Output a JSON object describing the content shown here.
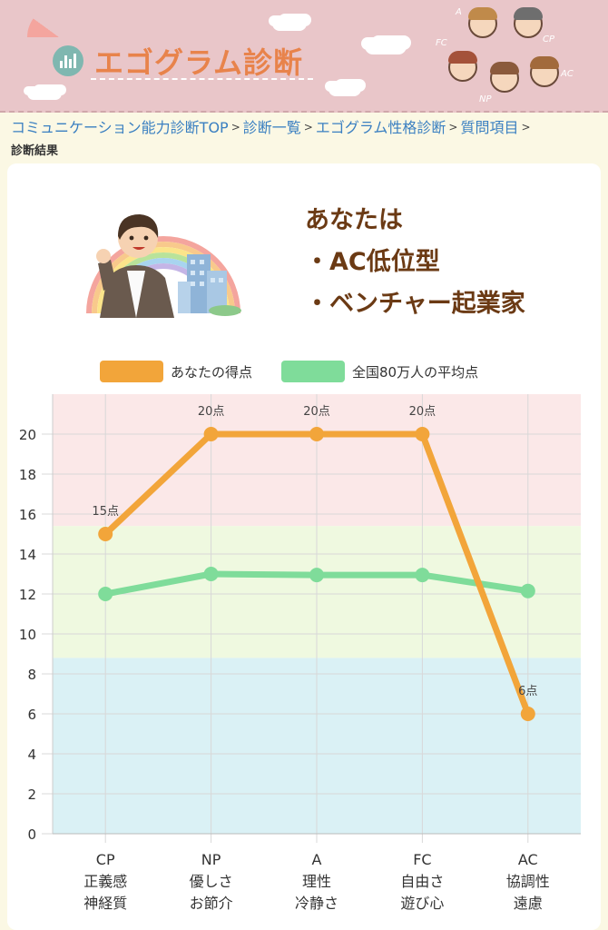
{
  "header": {
    "site_title": "エゴグラム診断",
    "character_labels": [
      "A",
      "CP",
      "FC",
      "NP",
      "AC"
    ]
  },
  "breadcrumb": {
    "items": [
      "コミュニケーション能力診断TOP",
      "診断一覧",
      "エゴグラム性格診断",
      "質問項目"
    ],
    "current": "診断結果"
  },
  "result": {
    "lead": "あなたは",
    "type_line": "・AC低位型",
    "job_line": "・ベンチャー起業家"
  },
  "legend": {
    "yours": "あなたの得点",
    "average": "全国80万人の平均点"
  },
  "colors": {
    "header_bg": "#e9c6c9",
    "title_orange": "#e8834b",
    "link_blue": "#3a7fc1",
    "result_brown": "#6b3a14",
    "yours_line": "#f2a53a",
    "average_line": "#7fdc9a",
    "band_high": "#fbe8e8",
    "band_mid": "#eff9e0",
    "band_low": "#daf1f5"
  },
  "chart_data": {
    "type": "line",
    "categories": [
      [
        "CP",
        "正義感",
        "神経質"
      ],
      [
        "NP",
        "優しさ",
        "お節介"
      ],
      [
        "A",
        "理性",
        "冷静さ"
      ],
      [
        "FC",
        "自由さ",
        "遊び心"
      ],
      [
        "AC",
        "協調性",
        "遠慮"
      ]
    ],
    "series": [
      {
        "name": "あなたの得点",
        "values": [
          15,
          20,
          20,
          20,
          6
        ],
        "data_labels": [
          "15点",
          "20点",
          "20点",
          "20点",
          "6点"
        ]
      },
      {
        "name": "全国80万人の平均点",
        "values": [
          12,
          13,
          12.95,
          12.95,
          12.15
        ]
      }
    ],
    "ylim": [
      0,
      22
    ],
    "yticks": [
      0,
      2,
      4,
      6,
      8,
      10,
      12,
      14,
      16,
      18,
      20
    ],
    "bands": [
      {
        "from": 15.4,
        "to": 22,
        "color": "#fbe8e8"
      },
      {
        "from": 8.8,
        "to": 15.4,
        "color": "#eff9e0"
      },
      {
        "from": 0,
        "to": 8.8,
        "color": "#daf1f5"
      }
    ],
    "grid": true,
    "legend_position": "top"
  }
}
